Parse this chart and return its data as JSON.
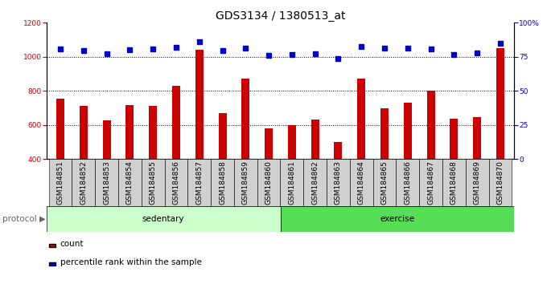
{
  "title": "GDS3134 / 1380513_at",
  "categories": [
    "GSM184851",
    "GSM184852",
    "GSM184853",
    "GSM184854",
    "GSM184855",
    "GSM184856",
    "GSM184857",
    "GSM184858",
    "GSM184859",
    "GSM184860",
    "GSM184861",
    "GSM184862",
    "GSM184863",
    "GSM184864",
    "GSM184865",
    "GSM184866",
    "GSM184867",
    "GSM184868",
    "GSM184869",
    "GSM184870"
  ],
  "bar_values": [
    755,
    710,
    625,
    715,
    710,
    830,
    1040,
    670,
    870,
    580,
    600,
    630,
    500,
    870,
    700,
    730,
    800,
    635,
    645,
    1050
  ],
  "dot_values": [
    1045,
    1035,
    1020,
    1040,
    1045,
    1055,
    1090,
    1035,
    1050,
    1010,
    1015,
    1018,
    990,
    1060,
    1050,
    1050,
    1048,
    1015,
    1022,
    1078
  ],
  "bar_color": "#cc0000",
  "dot_color": "#0000cc",
  "ylim_left": [
    400,
    1200
  ],
  "ylim_right": [
    0,
    100
  ],
  "yticks_left": [
    400,
    600,
    800,
    1000,
    1200
  ],
  "yticks_right": [
    0,
    25,
    50,
    75,
    100
  ],
  "grid_values": [
    600,
    800,
    1000
  ],
  "sedentary_count": 10,
  "exercise_count": 10,
  "sedentary_label": "sedentary",
  "exercise_label": "exercise",
  "protocol_label": "protocol",
  "legend_count_label": "count",
  "legend_pct_label": "percentile rank within the sample",
  "sedentary_color": "#ccffcc",
  "exercise_color": "#55dd55",
  "bar_width": 0.35,
  "plot_bg_color": "#ffffff",
  "tick_bg_color": "#d0d0d0",
  "title_fontsize": 10,
  "tick_fontsize": 6.5,
  "label_fontsize": 7.5
}
